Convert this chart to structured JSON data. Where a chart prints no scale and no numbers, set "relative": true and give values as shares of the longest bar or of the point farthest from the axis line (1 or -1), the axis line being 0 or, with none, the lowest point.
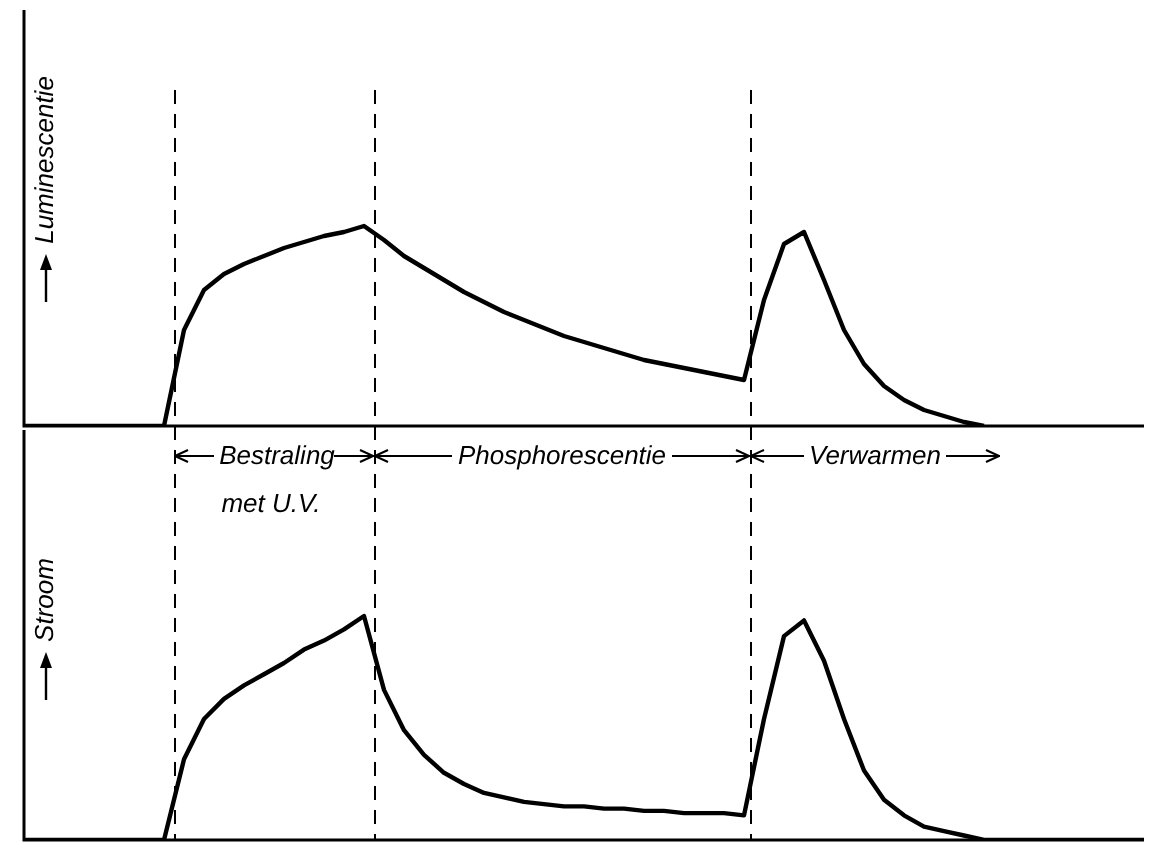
{
  "chart_data": [
    {
      "type": "line",
      "relative": true,
      "ylabel": "Luminescentie",
      "legend": false,
      "marker": "none",
      "categories": [
        null,
        null,
        null,
        null,
        null,
        null,
        null,
        null,
        null,
        null,
        null,
        null,
        null,
        null,
        null,
        null,
        null,
        null,
        null,
        null,
        null,
        null,
        null,
        null,
        null,
        null,
        null,
        null,
        null,
        null,
        null,
        null,
        null,
        null,
        null,
        null,
        null,
        null,
        null,
        null,
        null,
        null,
        null,
        null,
        null,
        null,
        null,
        null,
        null,
        null,
        null,
        null,
        null,
        null,
        null,
        null,
        null
      ],
      "series": [
        {
          "color": "#000000",
          "values": [
            0,
            0,
            0,
            0,
            0,
            0,
            0,
            0,
            0.48,
            0.68,
            0.76,
            0.81,
            0.85,
            0.89,
            0.92,
            0.95,
            0.97,
            1,
            0.93,
            0.85,
            0.79,
            0.73,
            0.67,
            0.62,
            0.57,
            0.53,
            0.49,
            0.45,
            0.42,
            0.39,
            0.36,
            0.33,
            0.31,
            0.29,
            0.27,
            0.25,
            0.23,
            0.63,
            0.91,
            0.97,
            0.73,
            0.48,
            0.31,
            0.2,
            0.13,
            0.08,
            0.05,
            0.02,
            0,
            null,
            null,
            null,
            null,
            null,
            null,
            null,
            null
          ]
        }
      ]
    },
    {
      "type": "line",
      "relative": true,
      "ylabel": "Stroom",
      "legend": false,
      "marker": "none",
      "categories": [
        null,
        null,
        null,
        null,
        null,
        null,
        null,
        null,
        null,
        null,
        null,
        null,
        null,
        null,
        null,
        null,
        null,
        null,
        null,
        null,
        null,
        null,
        null,
        null,
        null,
        null,
        null,
        null,
        null,
        null,
        null,
        null,
        null,
        null,
        null,
        null,
        null,
        null,
        null,
        null,
        null,
        null,
        null,
        null,
        null,
        null,
        null,
        null,
        null,
        null,
        null,
        null,
        null,
        null,
        null,
        null,
        null
      ],
      "annotations": [
        "Bestraling met U.V.",
        "Phosphorescentie",
        "Verwarmen"
      ],
      "series": [
        {
          "color": "#000000",
          "values": [
            0,
            0,
            0,
            0,
            0,
            0,
            0,
            0,
            0.36,
            0.54,
            0.63,
            0.69,
            0.74,
            0.79,
            0.85,
            0.89,
            0.94,
            1,
            0.67,
            0.49,
            0.38,
            0.3,
            0.25,
            0.21,
            0.19,
            0.17,
            0.16,
            0.15,
            0.15,
            0.14,
            0.14,
            0.13,
            0.13,
            0.12,
            0.12,
            0.12,
            0.11,
            0.54,
            0.91,
            0.98,
            0.8,
            0.54,
            0.31,
            0.18,
            0.11,
            0.06,
            0.04,
            0.02,
            0,
            0,
            0,
            0,
            0,
            0,
            0,
            0,
            0
          ]
        }
      ]
    }
  ]
}
